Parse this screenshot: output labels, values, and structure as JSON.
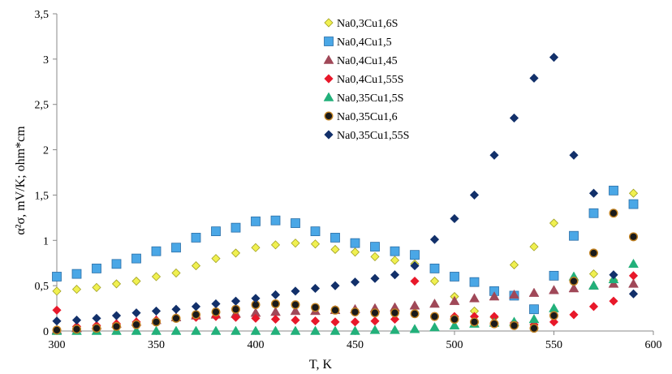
{
  "chart_data": {
    "type": "scatter",
    "xlabel": "T, K",
    "ylabel": "α²σ, mV/K; ohm*cm",
    "xlim": [
      300,
      600
    ],
    "ylim": [
      0,
      3.5
    ],
    "x_ticks": [
      300,
      350,
      400,
      450,
      500,
      550,
      600
    ],
    "y_ticks": [
      0,
      0.5,
      1,
      1.5,
      2,
      2.5,
      3,
      3.5
    ],
    "x_tick_labels": [
      "300",
      "350",
      "400",
      "450",
      "500",
      "550",
      "600"
    ],
    "y_tick_labels": [
      "0",
      "0,5",
      "1",
      "1,5",
      "2",
      "2,5",
      "3",
      "3,5"
    ],
    "grid": false,
    "legend_position": "top-center",
    "series": [
      {
        "name": "Na0,3Cu1,6S",
        "marker": "diamond",
        "color": "#f0f050",
        "stroke": "#a0a020",
        "x": [
          300,
          310,
          320,
          330,
          340,
          350,
          360,
          370,
          380,
          390,
          400,
          410,
          420,
          430,
          440,
          450,
          460,
          470,
          480,
          490,
          500,
          510,
          520,
          530,
          540,
          550,
          560,
          570,
          580,
          590
        ],
        "y": [
          0.44,
          0.46,
          0.48,
          0.52,
          0.55,
          0.6,
          0.64,
          0.72,
          0.8,
          0.86,
          0.92,
          0.95,
          0.97,
          0.96,
          0.9,
          0.87,
          0.82,
          0.78,
          0.74,
          0.55,
          0.38,
          0.22,
          0.15,
          0.73,
          0.93,
          1.19,
          0.55,
          0.63,
          0.56,
          1.52
        ]
      },
      {
        "name": "Na0,4Cu1,5",
        "marker": "square",
        "color": "#4aa7e6",
        "stroke": "#2a6fa8",
        "x": [
          300,
          310,
          320,
          330,
          340,
          350,
          360,
          370,
          380,
          390,
          400,
          410,
          420,
          430,
          440,
          450,
          460,
          470,
          480,
          490,
          500,
          510,
          520,
          530,
          540,
          550,
          560,
          570,
          580,
          590
        ],
        "y": [
          0.6,
          0.63,
          0.69,
          0.74,
          0.8,
          0.88,
          0.92,
          1.03,
          1.1,
          1.14,
          1.21,
          1.22,
          1.19,
          1.1,
          1.03,
          0.97,
          0.93,
          0.88,
          0.84,
          0.69,
          0.6,
          0.54,
          0.44,
          0.39,
          0.24,
          0.61,
          1.05,
          1.3,
          1.55,
          1.4
        ]
      },
      {
        "name": "Na0,4Cu1,45",
        "marker": "triangle",
        "color": "#a04858",
        "stroke": "#a04858",
        "x": [
          300,
          310,
          320,
          330,
          340,
          350,
          360,
          370,
          380,
          390,
          400,
          410,
          420,
          430,
          440,
          450,
          460,
          470,
          480,
          490,
          500,
          510,
          520,
          530,
          540,
          550,
          560,
          570,
          580,
          590
        ],
        "y": [
          0.01,
          0.03,
          0.06,
          0.08,
          0.1,
          0.12,
          0.15,
          0.17,
          0.18,
          0.19,
          0.2,
          0.21,
          0.22,
          0.22,
          0.23,
          0.24,
          0.25,
          0.26,
          0.28,
          0.3,
          0.33,
          0.36,
          0.38,
          0.4,
          0.42,
          0.45,
          0.47,
          0.5,
          0.52,
          0.52
        ]
      },
      {
        "name": "Na0,4Cu1,55S",
        "marker": "diamond",
        "color": "#e8182a",
        "stroke": "#e8182a",
        "x": [
          300,
          310,
          320,
          330,
          340,
          350,
          360,
          370,
          380,
          390,
          400,
          410,
          420,
          430,
          440,
          450,
          460,
          470,
          480,
          490,
          500,
          510,
          520,
          530,
          540,
          550,
          560,
          570,
          580,
          590
        ],
        "y": [
          0.23,
          0.05,
          0.06,
          0.08,
          0.1,
          0.12,
          0.14,
          0.15,
          0.16,
          0.15,
          0.14,
          0.13,
          0.12,
          0.11,
          0.1,
          0.1,
          0.11,
          0.13,
          0.55,
          0.16,
          0.16,
          0.16,
          0.16,
          0.09,
          0.07,
          0.1,
          0.18,
          0.27,
          0.33,
          0.61
        ]
      },
      {
        "name": "Na0,35Cu1,5S",
        "marker": "triangle",
        "color": "#22b07a",
        "stroke": "#22b07a",
        "x": [
          300,
          310,
          320,
          330,
          340,
          350,
          360,
          370,
          380,
          390,
          400,
          410,
          420,
          430,
          440,
          450,
          460,
          470,
          480,
          490,
          500,
          510,
          520,
          530,
          540,
          550,
          560,
          570,
          580,
          590
        ],
        "y": [
          0,
          0,
          0,
          0,
          0,
          0,
          0,
          0,
          0,
          0,
          0,
          0,
          0,
          0,
          0,
          0,
          0.01,
          0.01,
          0.02,
          0.04,
          0.06,
          0.08,
          0.09,
          0.1,
          0.13,
          0.25,
          0.6,
          0.5,
          0.57,
          0.74
        ]
      },
      {
        "name": "Na0,35Cu1,6",
        "marker": "circle",
        "color": "#1a1a1a",
        "stroke": "#c08020",
        "x": [
          300,
          310,
          320,
          330,
          340,
          350,
          360,
          370,
          380,
          390,
          400,
          410,
          420,
          430,
          440,
          450,
          460,
          470,
          480,
          490,
          500,
          510,
          520,
          530,
          540,
          550,
          560,
          570,
          580,
          590
        ],
        "y": [
          0.01,
          0.02,
          0.03,
          0.05,
          0.07,
          0.1,
          0.14,
          0.18,
          0.21,
          0.24,
          0.29,
          0.3,
          0.29,
          0.26,
          0.23,
          0.21,
          0.2,
          0.2,
          0.19,
          0.16,
          0.13,
          0.1,
          0.08,
          0.06,
          0.03,
          0.17,
          0.55,
          0.86,
          1.3,
          1.04
        ]
      },
      {
        "name": "Na0,35Cu1,55S",
        "marker": "diamond",
        "color": "#12306a",
        "stroke": "#12306a",
        "x": [
          300,
          310,
          320,
          330,
          340,
          350,
          360,
          370,
          380,
          390,
          400,
          410,
          420,
          430,
          440,
          450,
          460,
          470,
          480,
          490,
          500,
          510,
          520,
          530,
          540,
          550,
          560,
          570,
          580,
          590
        ],
        "y": [
          0.11,
          0.12,
          0.14,
          0.17,
          0.2,
          0.22,
          0.24,
          0.27,
          0.3,
          0.33,
          0.36,
          0.4,
          0.44,
          0.47,
          0.5,
          0.54,
          0.58,
          0.62,
          0.72,
          1.01,
          1.24,
          1.5,
          1.94,
          2.35,
          2.79,
          3.02,
          1.94,
          1.52,
          0.62,
          0.41
        ]
      }
    ]
  }
}
